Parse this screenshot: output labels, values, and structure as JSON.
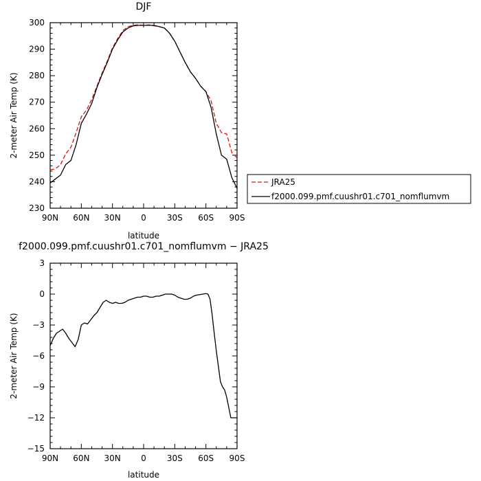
{
  "chart_data": [
    {
      "type": "line",
      "title": "DJF",
      "xlabel": "latitude",
      "ylabel": "2-meter Air Temp (K)",
      "xlim": [
        -90,
        90
      ],
      "ylim": [
        230,
        300
      ],
      "xticks": [
        -90,
        -60,
        -30,
        0,
        30,
        60,
        90
      ],
      "xtick_labels": [
        "90N",
        "60N",
        "30N",
        "0",
        "30S",
        "60S",
        "90S"
      ],
      "yticks": [
        230,
        240,
        250,
        260,
        270,
        280,
        290,
        300
      ],
      "ytick_labels": [
        "230",
        "240",
        "250",
        "260",
        "270",
        "280",
        "290",
        "300"
      ],
      "legend_position": "right",
      "series": [
        {
          "name": "JRA25",
          "color": "#dd1111",
          "dash": "dashed",
          "x": [
            -90,
            -85,
            -80,
            -75,
            -70,
            -65,
            -60,
            -55,
            -50,
            -45,
            -40,
            -35,
            -30,
            -25,
            -20,
            -15,
            -10,
            -5,
            0,
            5,
            10,
            15,
            20,
            25,
            30,
            35,
            40,
            45,
            50,
            55,
            60,
            65,
            70,
            75,
            80,
            85,
            90
          ],
          "y": [
            244.5,
            244.8,
            246.5,
            250.5,
            253.0,
            258.5,
            264.5,
            267.0,
            271.0,
            276.0,
            281.0,
            285.5,
            290.5,
            294.0,
            297.0,
            298.5,
            299.0,
            299.2,
            299.0,
            299.2,
            298.8,
            298.5,
            298.0,
            296.0,
            293.0,
            289.0,
            285.0,
            281.5,
            279.0,
            276.0,
            274.0,
            270.5,
            262.0,
            258.5,
            258.0,
            251.0,
            249.0
          ]
        },
        {
          "name": "f2000.099.pmf.cuushr01.c701_nomflumvm",
          "color": "#000000",
          "dash": "solid",
          "x": [
            -90,
            -85,
            -80,
            -75,
            -70,
            -65,
            -60,
            -55,
            -50,
            -45,
            -40,
            -35,
            -30,
            -25,
            -20,
            -15,
            -10,
            -5,
            0,
            5,
            10,
            15,
            20,
            25,
            30,
            35,
            40,
            45,
            50,
            55,
            60,
            65,
            70,
            75,
            80,
            85,
            90
          ],
          "y": [
            239.5,
            241.0,
            242.5,
            246.5,
            248.0,
            254.0,
            262.0,
            265.5,
            269.5,
            275.5,
            280.5,
            285.0,
            290.0,
            293.5,
            296.5,
            298.0,
            298.8,
            299.0,
            299.0,
            299.0,
            299.0,
            298.5,
            298.0,
            296.0,
            293.0,
            289.0,
            285.0,
            281.5,
            279.0,
            276.0,
            274.0,
            268.0,
            258.0,
            250.0,
            248.5,
            241.5,
            237.5
          ]
        }
      ]
    },
    {
      "type": "line",
      "title": "f2000.099.pmf.cuushr01.c701_nomflumvm  −  JRA25",
      "xlabel": "latitude",
      "ylabel": "2-meter Air Temp (K)",
      "xlim": [
        -90,
        90
      ],
      "ylim": [
        -15,
        3
      ],
      "xticks": [
        -90,
        -60,
        -30,
        0,
        30,
        60,
        90
      ],
      "xtick_labels": [
        "90N",
        "60N",
        "30N",
        "0",
        "30S",
        "60S",
        "90S"
      ],
      "yticks": [
        -15,
        -12,
        -9,
        -6,
        -3,
        0,
        3
      ],
      "ytick_labels": [
        "−15",
        "−12",
        "−9",
        "−6",
        "−3",
        "0",
        "3"
      ],
      "series": [
        {
          "color": "#000000",
          "dash": "solid",
          "x": [
            -90,
            -87,
            -84,
            -81,
            -78,
            -75,
            -72,
            -69,
            -66,
            -63,
            -60,
            -57,
            -54,
            -51,
            -48,
            -45,
            -42,
            -39,
            -36,
            -33,
            -30,
            -27,
            -24,
            -21,
            -18,
            -15,
            -12,
            -9,
            -6,
            -3,
            0,
            3,
            6,
            9,
            12,
            15,
            18,
            21,
            24,
            27,
            30,
            33,
            36,
            39,
            42,
            45,
            48,
            51,
            54,
            57,
            60,
            62,
            64,
            66,
            68,
            70,
            72,
            74,
            76,
            78,
            80,
            82,
            84,
            86,
            88,
            90
          ],
          "y": [
            -5.0,
            -4.3,
            -3.8,
            -3.6,
            -3.4,
            -3.8,
            -4.3,
            -4.7,
            -5.1,
            -4.4,
            -3.0,
            -2.8,
            -2.9,
            -2.5,
            -2.1,
            -1.8,
            -1.3,
            -0.8,
            -0.6,
            -0.8,
            -0.9,
            -0.8,
            -0.9,
            -0.9,
            -0.8,
            -0.6,
            -0.5,
            -0.4,
            -0.3,
            -0.3,
            -0.2,
            -0.2,
            -0.3,
            -0.3,
            -0.2,
            -0.2,
            -0.1,
            0.0,
            0.0,
            0.0,
            -0.1,
            -0.3,
            -0.4,
            -0.5,
            -0.5,
            -0.4,
            -0.2,
            -0.1,
            -0.05,
            0.0,
            0.05,
            0.0,
            -0.5,
            -2.0,
            -3.8,
            -5.5,
            -7.0,
            -8.5,
            -9.0,
            -9.3,
            -10.0,
            -11.0,
            -12.0,
            -12.0,
            -12.0,
            -12.0
          ]
        }
      ]
    }
  ]
}
